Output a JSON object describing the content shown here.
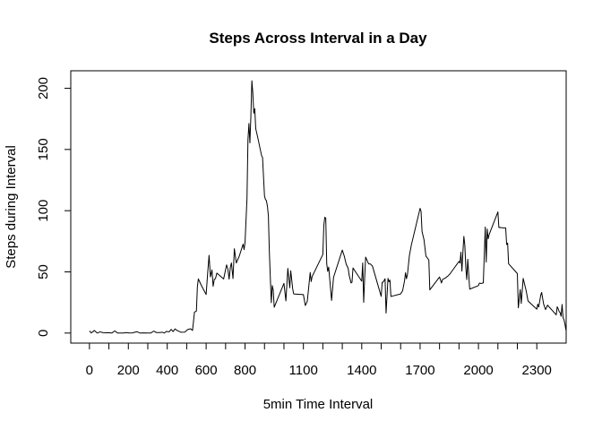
{
  "chart_data": {
    "type": "line",
    "title": "Steps Across Interval in a Day",
    "xlabel": "5min Time Interval",
    "ylabel": "Steps during Interval",
    "xlim": [
      -96,
      2451
    ],
    "ylim": [
      -8.2,
      214.3
    ],
    "xticks": [
      0,
      200,
      400,
      600,
      800,
      1100,
      1400,
      1700,
      2000,
      2300
    ],
    "minor_xticks": [
      100,
      300,
      500,
      700,
      900,
      1000,
      1200,
      1300,
      1500,
      1600,
      1800,
      1900,
      2100,
      2200
    ],
    "yticks": [
      0,
      50,
      100,
      150,
      200
    ],
    "grid": false,
    "legend": "none",
    "line_color": "#000000",
    "series": [
      {
        "values": [
          [
            0,
            1.7
          ],
          [
            10,
            0.1
          ],
          [
            25,
            2.1
          ],
          [
            40,
            0.0
          ],
          [
            55,
            1.0
          ],
          [
            70,
            0.3
          ],
          [
            85,
            0.2
          ],
          [
            100,
            0.3
          ],
          [
            115,
            0.0
          ],
          [
            130,
            1.8
          ],
          [
            145,
            0.0
          ],
          [
            160,
            0.0
          ],
          [
            175,
            0.0
          ],
          [
            190,
            0.4
          ],
          [
            205,
            0.0
          ],
          [
            220,
            0.1
          ],
          [
            245,
            1.1
          ],
          [
            260,
            0.0
          ],
          [
            280,
            0.1
          ],
          [
            300,
            0.0
          ],
          [
            315,
            0.0
          ],
          [
            330,
            1.6
          ],
          [
            345,
            0.4
          ],
          [
            360,
            0.4
          ],
          [
            375,
            0.7
          ],
          [
            385,
            0.0
          ],
          [
            395,
            1.3
          ],
          [
            410,
            1.0
          ],
          [
            420,
            3.0
          ],
          [
            430,
            1.2
          ],
          [
            440,
            3.4
          ],
          [
            450,
            2.2
          ],
          [
            470,
            0.7
          ],
          [
            490,
            0.8
          ],
          [
            505,
            2.9
          ],
          [
            520,
            3.5
          ],
          [
            530,
            2.1
          ],
          [
            540,
            17.1
          ],
          [
            550,
            18.0
          ],
          [
            555,
            38.0
          ],
          [
            560,
            44.3
          ],
          [
            575,
            39.0
          ],
          [
            600,
            31.5
          ],
          [
            608,
            49.3
          ],
          [
            615,
            63.5
          ],
          [
            622,
            45.9
          ],
          [
            630,
            51.6
          ],
          [
            636,
            38.2
          ],
          [
            642,
            43.9
          ],
          [
            648,
            44.5
          ],
          [
            655,
            49.0
          ],
          [
            670,
            47.0
          ],
          [
            690,
            44.2
          ],
          [
            705,
            55.7
          ],
          [
            712,
            52.0
          ],
          [
            718,
            44.1
          ],
          [
            725,
            54.2
          ],
          [
            730,
            57.3
          ],
          [
            738,
            44.5
          ],
          [
            745,
            68.9
          ],
          [
            755,
            57.3
          ],
          [
            770,
            62.7
          ],
          [
            790,
            72.7
          ],
          [
            795,
            68.2
          ],
          [
            800,
            74.2
          ],
          [
            810,
            110.0
          ],
          [
            815,
            158.0
          ],
          [
            820,
            171.2
          ],
          [
            825,
            155.4
          ],
          [
            830,
            177.3
          ],
          [
            835,
            206.2
          ],
          [
            840,
            195.9
          ],
          [
            845,
            179.6
          ],
          [
            850,
            183.4
          ],
          [
            855,
            167.0
          ],
          [
            865,
            160.0
          ],
          [
            885,
            145.0
          ],
          [
            890,
            143.5
          ],
          [
            900,
            112.0
          ],
          [
            905,
            109.1
          ],
          [
            910,
            108.1
          ],
          [
            915,
            103.7
          ],
          [
            920,
            95.9
          ],
          [
            925,
            66.2
          ],
          [
            930,
            45.2
          ],
          [
            935,
            24.8
          ],
          [
            940,
            38.8
          ],
          [
            945,
            34.9
          ],
          [
            950,
            21.1
          ],
          [
            1000,
            40.6
          ],
          [
            1010,
            26.3
          ],
          [
            1020,
            52.8
          ],
          [
            1030,
            37.0
          ],
          [
            1035,
            50.9
          ],
          [
            1045,
            36.1
          ],
          [
            1050,
            32.0
          ],
          [
            1100,
            31.4
          ],
          [
            1110,
            22.5
          ],
          [
            1120,
            26.0
          ],
          [
            1135,
            49.5
          ],
          [
            1140,
            42.1
          ],
          [
            1145,
            46.2
          ],
          [
            1200,
            64.2
          ],
          [
            1205,
            88.0
          ],
          [
            1210,
            94.6
          ],
          [
            1215,
            93.9
          ],
          [
            1220,
            56.5
          ],
          [
            1225,
            50.4
          ],
          [
            1230,
            53.9
          ],
          [
            1245,
            26.7
          ],
          [
            1255,
            45.5
          ],
          [
            1300,
            67.8
          ],
          [
            1310,
            63.0
          ],
          [
            1320,
            56.3
          ],
          [
            1330,
            53.0
          ],
          [
            1335,
            47.5
          ],
          [
            1345,
            40.9
          ],
          [
            1350,
            41.6
          ],
          [
            1355,
            53.2
          ],
          [
            1400,
            42.4
          ],
          [
            1405,
            57.3
          ],
          [
            1410,
            25.1
          ],
          [
            1415,
            45.3
          ],
          [
            1420,
            62.1
          ],
          [
            1435,
            56.6
          ],
          [
            1445,
            56.4
          ],
          [
            1455,
            54.7
          ],
          [
            1500,
            30.0
          ],
          [
            1505,
            41.5
          ],
          [
            1510,
            41.6
          ],
          [
            1520,
            44.4
          ],
          [
            1525,
            16.3
          ],
          [
            1535,
            44.7
          ],
          [
            1540,
            41.9
          ],
          [
            1545,
            43.3
          ],
          [
            1550,
            29.9
          ],
          [
            1600,
            32.0
          ],
          [
            1610,
            34.5
          ],
          [
            1620,
            42.6
          ],
          [
            1625,
            49.3
          ],
          [
            1630,
            44.4
          ],
          [
            1635,
            47.8
          ],
          [
            1645,
            63.3
          ],
          [
            1655,
            71.9
          ],
          [
            1700,
            101.9
          ],
          [
            1705,
            99.4
          ],
          [
            1710,
            83.0
          ],
          [
            1720,
            76.3
          ],
          [
            1730,
            62.8
          ],
          [
            1740,
            60.8
          ],
          [
            1745,
            59.6
          ],
          [
            1750,
            35.3
          ],
          [
            1800,
            45.8
          ],
          [
            1810,
            40.9
          ],
          [
            1815,
            43.7
          ],
          [
            1830,
            45.0
          ],
          [
            1845,
            46.9
          ],
          [
            1855,
            48.6
          ],
          [
            1900,
            58.6
          ],
          [
            1905,
            57.2
          ],
          [
            1910,
            66.1
          ],
          [
            1915,
            50.6
          ],
          [
            1920,
            65.9
          ],
          [
            1925,
            79.0
          ],
          [
            1930,
            71.8
          ],
          [
            1935,
            53.5
          ],
          [
            1940,
            43.7
          ],
          [
            1945,
            60.3
          ],
          [
            1955,
            35.9
          ],
          [
            2000,
            38.8
          ],
          [
            2005,
            40.8
          ],
          [
            2015,
            40.5
          ],
          [
            2025,
            41.0
          ],
          [
            2035,
            86.7
          ],
          [
            2040,
            58.0
          ],
          [
            2045,
            85.0
          ],
          [
            2050,
            77.0
          ],
          [
            2055,
            80.5
          ],
          [
            2100,
            99.0
          ],
          [
            2105,
            86.2
          ],
          [
            2110,
            86.3
          ],
          [
            2125,
            85.9
          ],
          [
            2140,
            85.9
          ],
          [
            2145,
            72.3
          ],
          [
            2150,
            73.5
          ],
          [
            2155,
            56.6
          ],
          [
            2200,
            48.6
          ],
          [
            2205,
            20.6
          ],
          [
            2215,
            35.6
          ],
          [
            2220,
            24.2
          ],
          [
            2230,
            44.7
          ],
          [
            2245,
            34.8
          ],
          [
            2255,
            26.2
          ],
          [
            2300,
            19.5
          ],
          [
            2305,
            23.6
          ],
          [
            2310,
            21.3
          ],
          [
            2320,
            30.8
          ],
          [
            2325,
            33.2
          ],
          [
            2335,
            23.8
          ],
          [
            2345,
            19.2
          ],
          [
            2355,
            22.8
          ],
          [
            2400,
            14.9
          ],
          [
            2405,
            21.5
          ],
          [
            2410,
            19.8
          ],
          [
            2415,
            17.6
          ],
          [
            2420,
            16.6
          ],
          [
            2425,
            13.7
          ],
          [
            2430,
            23.4
          ],
          [
            2435,
            12.6
          ],
          [
            2440,
            10.8
          ],
          [
            2445,
            7.0
          ],
          [
            2450,
            2.4
          ]
        ]
      }
    ]
  }
}
